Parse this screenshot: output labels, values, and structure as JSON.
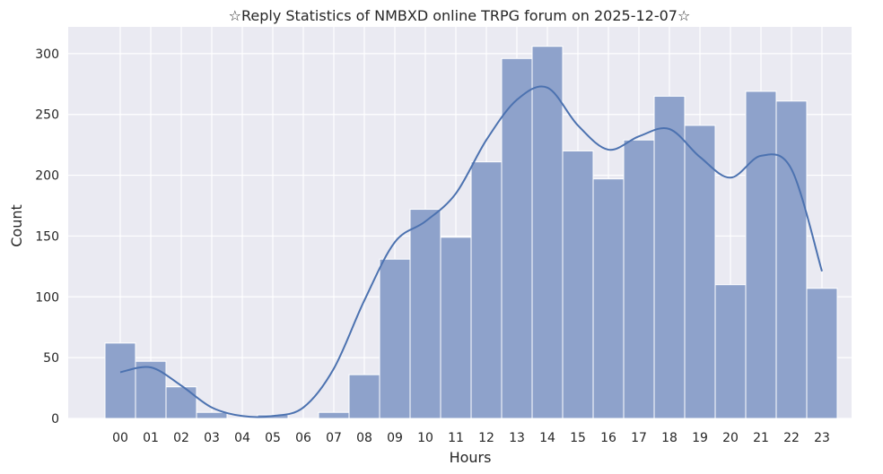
{
  "chart_data": {
    "type": "bar",
    "title": "☆Reply Statistics of NMBXD online TRPG forum on 2025-12-07☆",
    "xlabel": "Hours",
    "ylabel": "Count",
    "categories": [
      "00",
      "01",
      "02",
      "03",
      "04",
      "05",
      "06",
      "07",
      "08",
      "09",
      "10",
      "11",
      "12",
      "13",
      "14",
      "15",
      "16",
      "17",
      "18",
      "19",
      "20",
      "21",
      "22",
      "23"
    ],
    "values": [
      62,
      47,
      26,
      5,
      0,
      3,
      0,
      5,
      36,
      131,
      172,
      149,
      211,
      296,
      306,
      220,
      197,
      229,
      265,
      241,
      110,
      269,
      261,
      107
    ],
    "ylim": [
      0,
      322
    ],
    "yticks": [
      0,
      50,
      100,
      150,
      200,
      250,
      300
    ],
    "kde": [
      38,
      42,
      27,
      9,
      2,
      2,
      9,
      41,
      97,
      145,
      162,
      185,
      229,
      262,
      272,
      241,
      221,
      232,
      238,
      215,
      198,
      216,
      205,
      121
    ],
    "grid": true,
    "bar_color": "#8ea2cb",
    "line_color": "#4c72b0",
    "background": "#eaeaf2"
  }
}
